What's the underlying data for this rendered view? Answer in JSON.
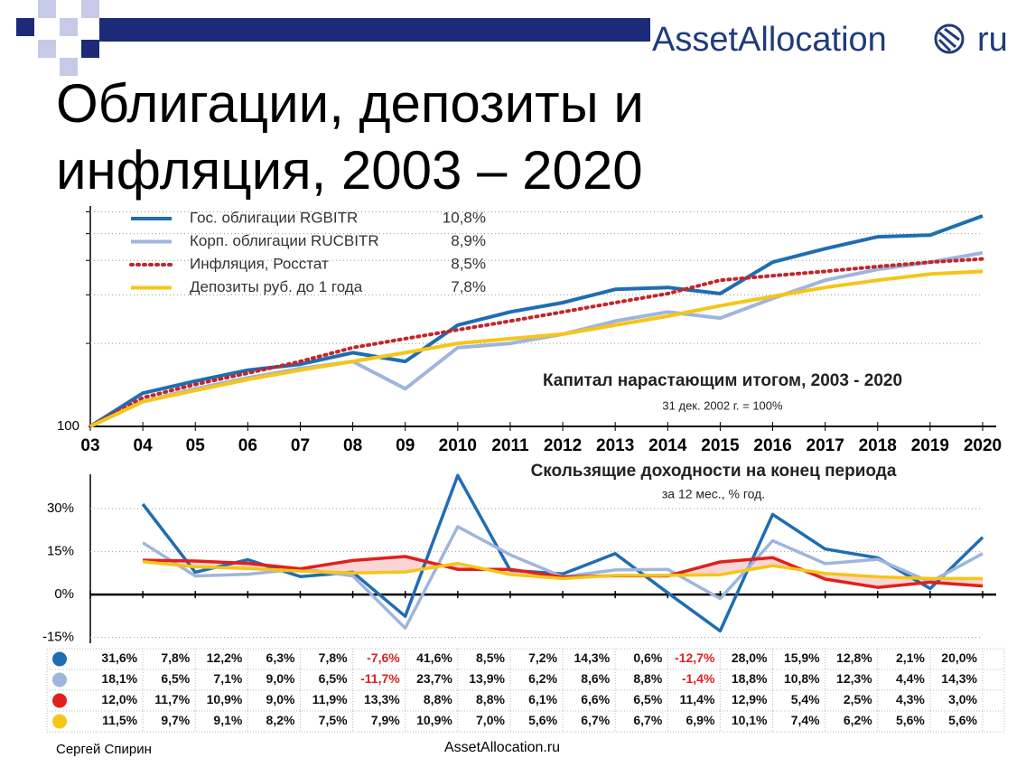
{
  "logo": {
    "name": "AssetAllocation",
    "suffix": "ru"
  },
  "title": "Облигации, депозиты и инфляция, 2003 – 2020",
  "chart_data": [
    {
      "type": "line",
      "title": "Капитал нарастающим итогом, 2003 - 2020",
      "subtitle": "31 дек. 2002 г. = 100%",
      "log_y": true,
      "grid": true,
      "x": [
        2003,
        2004,
        2005,
        2006,
        2007,
        2008,
        2009,
        2010,
        2011,
        2012,
        2013,
        2014,
        2015,
        2016,
        2017,
        2018,
        2019,
        2020
      ],
      "xlim": [
        2003,
        2020
      ],
      "xticks": [
        {
          "value": 2003,
          "label": "03"
        },
        {
          "value": 2004,
          "label": "04"
        },
        {
          "value": 2005,
          "label": "05"
        },
        {
          "value": 2006,
          "label": "06"
        },
        {
          "value": 2007,
          "label": "07"
        },
        {
          "value": 2008,
          "label": "08"
        },
        {
          "value": 2009,
          "label": "09"
        },
        2010,
        2011,
        2012,
        2013,
        2014,
        2015,
        2016,
        2017,
        2018,
        2019,
        2020
      ],
      "ylim": [
        100,
        630
      ],
      "yticks": [
        100
      ],
      "minor_yticks": [
        200,
        300,
        400,
        500,
        600
      ],
      "series": [
        {
          "name": "Гос. облигации RGBITR",
          "legend_value": "10,8%",
          "color": "#1f6db3",
          "dotted": false,
          "values": [
            100,
            132,
            146,
            160,
            168,
            185,
            172,
            233,
            260,
            281,
            314,
            319,
            303,
            394,
            441,
            487,
            494,
            580
          ]
        },
        {
          "name": "Корп. облигации RUCBITR",
          "legend_value": "8,9%",
          "color": "#9fb5dd",
          "dotted": false,
          "values": [
            100,
            123,
            137,
            150,
            162,
            172,
            137,
            193,
            200,
            216,
            241,
            260,
            247,
            291,
            339,
            371,
            394,
            426
          ]
        },
        {
          "name": "Инфляция, Росстат",
          "legend_value": "8,5%",
          "color": "#c0262b",
          "dotted": true,
          "values": [
            100,
            127,
            142,
            156,
            172,
            193,
            208,
            224,
            241,
            260,
            281,
            303,
            339,
            352,
            365,
            380,
            394,
            405
          ]
        },
        {
          "name": "Депозиты руб. до 1 года",
          "legend_value": "7,8%",
          "color": "#f5c518",
          "dotted": false,
          "values": [
            100,
            123,
            135,
            148,
            160,
            172,
            185,
            200,
            208,
            216,
            233,
            251,
            274,
            296,
            319,
            339,
            357,
            365
          ]
        }
      ]
    },
    {
      "type": "line",
      "title": "Скользящие доходности на конец периода",
      "subtitle": "за 12 мес., % год.",
      "grid": true,
      "x": [
        2004,
        2005,
        2006,
        2007,
        2008,
        2009,
        2010,
        2011,
        2012,
        2013,
        2014,
        2015,
        2016,
        2017,
        2018,
        2019,
        2020
      ],
      "xlim": [
        2003,
        2020
      ],
      "ylim": [
        -17,
        42
      ],
      "yticks": [
        {
          "value": -15,
          "label": "-15%"
        },
        {
          "value": 0,
          "label": "0%"
        },
        {
          "value": 15,
          "label": "15%"
        },
        {
          "value": 30,
          "label": "30%"
        }
      ],
      "series": [
        {
          "color": "#1f6db3",
          "values": [
            31.6,
            7.8,
            12.2,
            6.3,
            7.8,
            -7.6,
            41.6,
            8.5,
            7.2,
            14.3,
            0.6,
            -12.7,
            28.0,
            15.9,
            12.8,
            2.1,
            20.0
          ],
          "value_labels": [
            "31,6%",
            "7,8%",
            "12,2%",
            "6,3%",
            "7,8%",
            "-7,6%",
            "41,6%",
            "8,5%",
            "7,2%",
            "14,3%",
            "0,6%",
            "-12,7%",
            "28,0%",
            "15,9%",
            "12,8%",
            "2,1%",
            "20,0%"
          ]
        },
        {
          "color": "#9fb5dd",
          "values": [
            18.1,
            6.5,
            7.1,
            9.0,
            6.5,
            -11.7,
            23.7,
            13.9,
            6.2,
            8.6,
            8.8,
            -1.4,
            18.8,
            10.8,
            12.3,
            4.4,
            14.3
          ],
          "value_labels": [
            "18,1%",
            "6,5%",
            "7,1%",
            "9,0%",
            "6,5%",
            "-11,7%",
            "23,7%",
            "13,9%",
            "6,2%",
            "8,6%",
            "8,8%",
            "-1,4%",
            "18,8%",
            "10,8%",
            "12,3%",
            "4,4%",
            "14,3%"
          ]
        },
        {
          "color": "#e0201b",
          "values": [
            12.0,
            11.7,
            10.9,
            9.0,
            11.9,
            13.3,
            8.8,
            8.8,
            6.1,
            6.6,
            6.5,
            11.4,
            12.9,
            5.4,
            2.5,
            4.3,
            3.0
          ],
          "value_labels": [
            "12,0%",
            "11,7%",
            "10,9%",
            "9,0%",
            "11,9%",
            "13,3%",
            "8,8%",
            "8,8%",
            "6,1%",
            "6,6%",
            "6,5%",
            "11,4%",
            "12,9%",
            "5,4%",
            "2,5%",
            "4,3%",
            "3,0%"
          ]
        },
        {
          "color": "#f5c518",
          "values": [
            11.5,
            9.7,
            9.1,
            8.2,
            7.5,
            7.9,
            10.9,
            7.0,
            5.6,
            6.7,
            6.7,
            6.9,
            10.1,
            7.4,
            6.2,
            5.6,
            5.6
          ],
          "value_labels": [
            "11,5%",
            "9,7%",
            "9,1%",
            "8,2%",
            "7,5%",
            "7,9%",
            "10,9%",
            "7,0%",
            "5,6%",
            "6,7%",
            "6,7%",
            "6,9%",
            "10,1%",
            "7,4%",
            "6,2%",
            "5,6%",
            "5,6%"
          ]
        }
      ]
    }
  ],
  "footer": {
    "author": "Сергей Спирин",
    "site": "AssetAllocation.ru"
  }
}
